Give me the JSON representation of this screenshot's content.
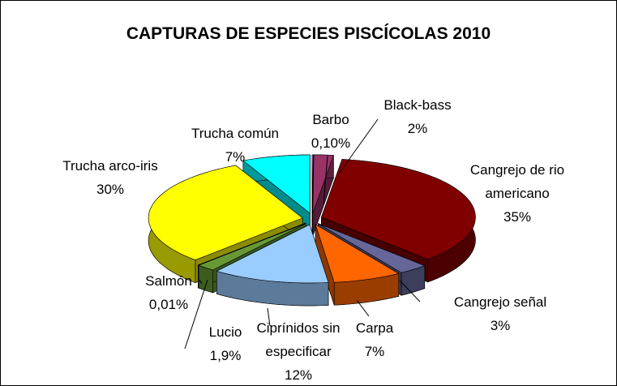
{
  "chart_data": {
    "type": "pie3d",
    "title": "CAPTURAS DE ESPECIES PISCÍCOLAS 2010",
    "categories": [
      "Barbo",
      "Black-bass",
      "Cangrejo de rio americano",
      "Cangrejo señal",
      "Carpa",
      "Ciprínidos sin especificar",
      "Lucio",
      "Salmón",
      "Trucha arco-iris",
      "Trucha común"
    ],
    "values": [
      0.1,
      2,
      35,
      3,
      7,
      12,
      1.9,
      0.01,
      30,
      7
    ],
    "value_labels": [
      "0,10%",
      "2%",
      "35%",
      "3%",
      "7%",
      "12%",
      "1,9%",
      "0,01%",
      "30%",
      "7%"
    ],
    "colors": [
      "#9999ff",
      "#993366",
      "#800000",
      "#666699",
      "#ff6600",
      "#99ccff",
      "#669933",
      "#003366",
      "#ffff00",
      "#00ffff"
    ]
  }
}
